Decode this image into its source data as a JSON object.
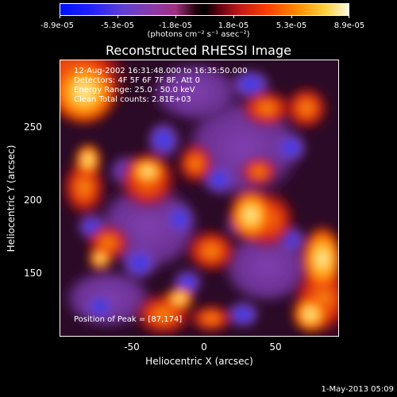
{
  "colorbar": {
    "tick_labels": [
      "-8.9e-05",
      "-5.3e-05",
      "-1.8e-05",
      "1.8e-05",
      "5.3e-05",
      "8.9e-05"
    ],
    "units": "(photons cm⁻² s⁻¹ asec⁻²)"
  },
  "title": "Reconstructed RHESSI Image",
  "info": {
    "line1": "12-Aug-2002 16:31:48.000 to 16:35:50.000",
    "line2": "Detectors: 4F 5F 6F 7F 8F, Att 0",
    "line3": "Energy Range: 25.0 - 50.0 keV",
    "line4": "Clean     Total counts: 2.81E+03",
    "peak": "Position of Peak = [87,174]"
  },
  "axes": {
    "xlabel": "Heliocentric X (arcsec)",
    "ylabel": "Heliocentric Y (arcsec)",
    "xticks": [
      "-50",
      "0",
      "50"
    ],
    "yticks": [
      "250",
      "200",
      "150"
    ]
  },
  "timestamp": "1-May-2013 05:09",
  "colors": {
    "hot": "#ff6a00",
    "bright": "#fff4c8",
    "cool": "#2020ff",
    "mid": "#7a3a9c"
  }
}
